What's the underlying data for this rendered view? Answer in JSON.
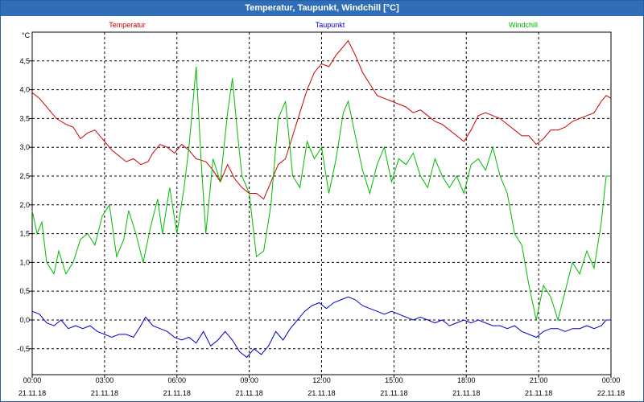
{
  "window": {
    "title": "Temperatur, Taupunkt, Windchill [°C]"
  },
  "chart_data": {
    "type": "line",
    "title": "Temperatur, Taupunkt, Windchill [°C]",
    "ylabel": "°C",
    "ylim": [
      -0.95,
      5.0
    ],
    "xlim": [
      0,
      24
    ],
    "grid": true,
    "legend_position": "top",
    "y_ticks": [
      4.5,
      4.0,
      3.5,
      3.0,
      2.5,
      2.0,
      1.5,
      1.0,
      0.5,
      0.0,
      -0.5
    ],
    "y_tick_labels": [
      "4,5",
      "4,0",
      "3,5",
      "3,0",
      "2,5",
      "2,0",
      "1,5",
      "1,0",
      "0,5",
      "0,0",
      "-0,5"
    ],
    "x_ticks": [
      0,
      3,
      6,
      9,
      12,
      15,
      18,
      21,
      24
    ],
    "x_tick_times": [
      "00:00",
      "03:00",
      "06:00",
      "09:00",
      "12:00",
      "15:00",
      "18:00",
      "21:00",
      "00:00"
    ],
    "x_tick_dates": [
      "21.11.18",
      "21.11.18",
      "21.11.18",
      "21.11.18",
      "21.11.18",
      "21.11.18",
      "21.11.18",
      "21.11.18",
      "22.11.18"
    ],
    "series": [
      {
        "name": "Temperatur",
        "color": "#cc0000",
        "points": [
          [
            0,
            3.95
          ],
          [
            0.3,
            3.85
          ],
          [
            0.6,
            3.7
          ],
          [
            1.0,
            3.5
          ],
          [
            1.4,
            3.4
          ],
          [
            1.7,
            3.35
          ],
          [
            2.0,
            3.15
          ],
          [
            2.3,
            3.25
          ],
          [
            2.6,
            3.3
          ],
          [
            3.0,
            3.1
          ],
          [
            3.3,
            2.95
          ],
          [
            3.6,
            2.85
          ],
          [
            3.9,
            2.75
          ],
          [
            4.2,
            2.8
          ],
          [
            4.5,
            2.7
          ],
          [
            4.8,
            2.75
          ],
          [
            5.0,
            2.9
          ],
          [
            5.3,
            3.05
          ],
          [
            5.6,
            3.0
          ],
          [
            5.9,
            2.9
          ],
          [
            6.2,
            3.05
          ],
          [
            6.5,
            2.95
          ],
          [
            6.8,
            2.8
          ],
          [
            7.2,
            2.75
          ],
          [
            7.5,
            2.6
          ],
          [
            7.8,
            2.4
          ],
          [
            8.1,
            2.7
          ],
          [
            8.4,
            2.45
          ],
          [
            8.7,
            2.3
          ],
          [
            9.0,
            2.2
          ],
          [
            9.3,
            2.2
          ],
          [
            9.6,
            2.1
          ],
          [
            9.9,
            2.4
          ],
          [
            10.2,
            2.7
          ],
          [
            10.5,
            2.8
          ],
          [
            10.8,
            3.2
          ],
          [
            11.1,
            3.6
          ],
          [
            11.4,
            4.0
          ],
          [
            11.7,
            4.3
          ],
          [
            12.0,
            4.45
          ],
          [
            12.3,
            4.4
          ],
          [
            12.6,
            4.6
          ],
          [
            12.9,
            4.75
          ],
          [
            13.1,
            4.85
          ],
          [
            13.4,
            4.6
          ],
          [
            13.7,
            4.3
          ],
          [
            14.0,
            4.1
          ],
          [
            14.3,
            3.9
          ],
          [
            14.6,
            3.85
          ],
          [
            14.9,
            3.8
          ],
          [
            15.2,
            3.75
          ],
          [
            15.5,
            3.7
          ],
          [
            15.8,
            3.6
          ],
          [
            16.1,
            3.65
          ],
          [
            16.4,
            3.55
          ],
          [
            16.7,
            3.45
          ],
          [
            17.0,
            3.4
          ],
          [
            17.3,
            3.3
          ],
          [
            17.6,
            3.2
          ],
          [
            17.9,
            3.1
          ],
          [
            18.2,
            3.3
          ],
          [
            18.5,
            3.55
          ],
          [
            18.8,
            3.6
          ],
          [
            19.1,
            3.55
          ],
          [
            19.4,
            3.5
          ],
          [
            19.7,
            3.4
          ],
          [
            20.0,
            3.3
          ],
          [
            20.3,
            3.2
          ],
          [
            20.6,
            3.2
          ],
          [
            20.9,
            3.05
          ],
          [
            21.2,
            3.15
          ],
          [
            21.5,
            3.3
          ],
          [
            21.8,
            3.3
          ],
          [
            22.1,
            3.35
          ],
          [
            22.4,
            3.45
          ],
          [
            22.7,
            3.5
          ],
          [
            23.0,
            3.55
          ],
          [
            23.3,
            3.6
          ],
          [
            23.6,
            3.8
          ],
          [
            23.8,
            3.9
          ],
          [
            24.0,
            3.85
          ]
        ]
      },
      {
        "name": "Taupunkt",
        "color": "#0000cc",
        "points": [
          [
            0,
            0.15
          ],
          [
            0.3,
            0.1
          ],
          [
            0.6,
            -0.05
          ],
          [
            0.9,
            -0.1
          ],
          [
            1.2,
            0.0
          ],
          [
            1.5,
            -0.15
          ],
          [
            1.8,
            -0.1
          ],
          [
            2.1,
            -0.15
          ],
          [
            2.4,
            -0.1
          ],
          [
            2.7,
            -0.2
          ],
          [
            3.0,
            -0.25
          ],
          [
            3.3,
            -0.3
          ],
          [
            3.6,
            -0.25
          ],
          [
            3.9,
            -0.25
          ],
          [
            4.2,
            -0.3
          ],
          [
            4.5,
            -0.1
          ],
          [
            4.7,
            0.05
          ],
          [
            5.0,
            -0.1
          ],
          [
            5.3,
            -0.15
          ],
          [
            5.6,
            -0.2
          ],
          [
            5.9,
            -0.3
          ],
          [
            6.2,
            -0.35
          ],
          [
            6.5,
            -0.3
          ],
          [
            6.8,
            -0.4
          ],
          [
            7.1,
            -0.2
          ],
          [
            7.4,
            -0.45
          ],
          [
            7.7,
            -0.35
          ],
          [
            8.0,
            -0.2
          ],
          [
            8.3,
            -0.35
          ],
          [
            8.6,
            -0.55
          ],
          [
            8.9,
            -0.65
          ],
          [
            9.2,
            -0.5
          ],
          [
            9.5,
            -0.6
          ],
          [
            9.8,
            -0.45
          ],
          [
            10.1,
            -0.2
          ],
          [
            10.4,
            -0.35
          ],
          [
            10.7,
            -0.15
          ],
          [
            11.0,
            0.0
          ],
          [
            11.3,
            0.15
          ],
          [
            11.6,
            0.25
          ],
          [
            11.9,
            0.3
          ],
          [
            12.2,
            0.2
          ],
          [
            12.5,
            0.3
          ],
          [
            12.8,
            0.35
          ],
          [
            13.1,
            0.4
          ],
          [
            13.4,
            0.35
          ],
          [
            13.7,
            0.25
          ],
          [
            14.0,
            0.2
          ],
          [
            14.3,
            0.15
          ],
          [
            14.6,
            0.1
          ],
          [
            14.9,
            0.15
          ],
          [
            15.2,
            0.1
          ],
          [
            15.5,
            0.05
          ],
          [
            15.8,
            0.0
          ],
          [
            16.1,
            0.05
          ],
          [
            16.4,
            0.0
          ],
          [
            16.7,
            -0.05
          ],
          [
            17.0,
            0.0
          ],
          [
            17.3,
            -0.1
          ],
          [
            17.6,
            -0.05
          ],
          [
            17.9,
            0.0
          ],
          [
            18.2,
            -0.05
          ],
          [
            18.5,
            0.0
          ],
          [
            18.8,
            -0.05
          ],
          [
            19.1,
            -0.1
          ],
          [
            19.4,
            -0.1
          ],
          [
            19.7,
            -0.15
          ],
          [
            20.0,
            -0.1
          ],
          [
            20.3,
            -0.2
          ],
          [
            20.6,
            -0.25
          ],
          [
            20.9,
            -0.3
          ],
          [
            21.2,
            -0.2
          ],
          [
            21.5,
            -0.15
          ],
          [
            21.8,
            -0.15
          ],
          [
            22.1,
            -0.2
          ],
          [
            22.4,
            -0.15
          ],
          [
            22.7,
            -0.15
          ],
          [
            23.0,
            -0.1
          ],
          [
            23.3,
            -0.15
          ],
          [
            23.6,
            -0.1
          ],
          [
            23.8,
            0.0
          ],
          [
            24.0,
            0.0
          ]
        ]
      },
      {
        "name": "Windchill",
        "color": "#00bb00",
        "points": [
          [
            0,
            1.9
          ],
          [
            0.2,
            1.5
          ],
          [
            0.4,
            1.7
          ],
          [
            0.6,
            1.0
          ],
          [
            0.9,
            0.8
          ],
          [
            1.1,
            1.2
          ],
          [
            1.4,
            0.8
          ],
          [
            1.7,
            1.0
          ],
          [
            2.0,
            1.4
          ],
          [
            2.3,
            1.5
          ],
          [
            2.6,
            1.3
          ],
          [
            2.9,
            1.8
          ],
          [
            3.2,
            2.0
          ],
          [
            3.5,
            1.1
          ],
          [
            3.8,
            1.4
          ],
          [
            4.0,
            1.9
          ],
          [
            4.3,
            1.5
          ],
          [
            4.6,
            1.0
          ],
          [
            4.9,
            1.6
          ],
          [
            5.2,
            2.1
          ],
          [
            5.4,
            1.5
          ],
          [
            5.7,
            2.3
          ],
          [
            6.0,
            1.5
          ],
          [
            6.3,
            2.3
          ],
          [
            6.5,
            3.0
          ],
          [
            6.8,
            4.4
          ],
          [
            7.0,
            2.8
          ],
          [
            7.2,
            1.5
          ],
          [
            7.5,
            2.8
          ],
          [
            7.8,
            2.4
          ],
          [
            8.1,
            3.6
          ],
          [
            8.3,
            4.2
          ],
          [
            8.5,
            3.3
          ],
          [
            8.7,
            2.5
          ],
          [
            9.0,
            2.2
          ],
          [
            9.3,
            1.1
          ],
          [
            9.6,
            1.2
          ],
          [
            9.9,
            2.0
          ],
          [
            10.2,
            3.5
          ],
          [
            10.5,
            3.8
          ],
          [
            10.8,
            2.5
          ],
          [
            11.1,
            2.3
          ],
          [
            11.4,
            3.1
          ],
          [
            11.7,
            2.8
          ],
          [
            12.0,
            3.0
          ],
          [
            12.3,
            2.2
          ],
          [
            12.6,
            2.8
          ],
          [
            12.9,
            3.6
          ],
          [
            13.1,
            3.8
          ],
          [
            13.4,
            3.2
          ],
          [
            13.7,
            2.6
          ],
          [
            14.0,
            2.2
          ],
          [
            14.3,
            2.7
          ],
          [
            14.6,
            3.0
          ],
          [
            14.9,
            2.4
          ],
          [
            15.2,
            2.8
          ],
          [
            15.5,
            2.7
          ],
          [
            15.8,
            2.9
          ],
          [
            16.1,
            2.5
          ],
          [
            16.4,
            2.3
          ],
          [
            16.7,
            2.8
          ],
          [
            17.0,
            2.5
          ],
          [
            17.3,
            2.3
          ],
          [
            17.6,
            2.5
          ],
          [
            17.9,
            2.2
          ],
          [
            18.2,
            2.7
          ],
          [
            18.5,
            2.8
          ],
          [
            18.8,
            2.6
          ],
          [
            19.1,
            3.0
          ],
          [
            19.4,
            2.5
          ],
          [
            19.7,
            2.2
          ],
          [
            20.0,
            1.5
          ],
          [
            20.3,
            1.3
          ],
          [
            20.6,
            0.6
          ],
          [
            20.9,
            0.0
          ],
          [
            21.2,
            0.6
          ],
          [
            21.5,
            0.4
          ],
          [
            21.8,
            0.0
          ],
          [
            22.1,
            0.5
          ],
          [
            22.4,
            1.0
          ],
          [
            22.7,
            0.8
          ],
          [
            23.0,
            1.2
          ],
          [
            23.3,
            0.9
          ],
          [
            23.6,
            1.7
          ],
          [
            23.8,
            2.5
          ],
          [
            24.0,
            2.5
          ]
        ]
      }
    ]
  }
}
